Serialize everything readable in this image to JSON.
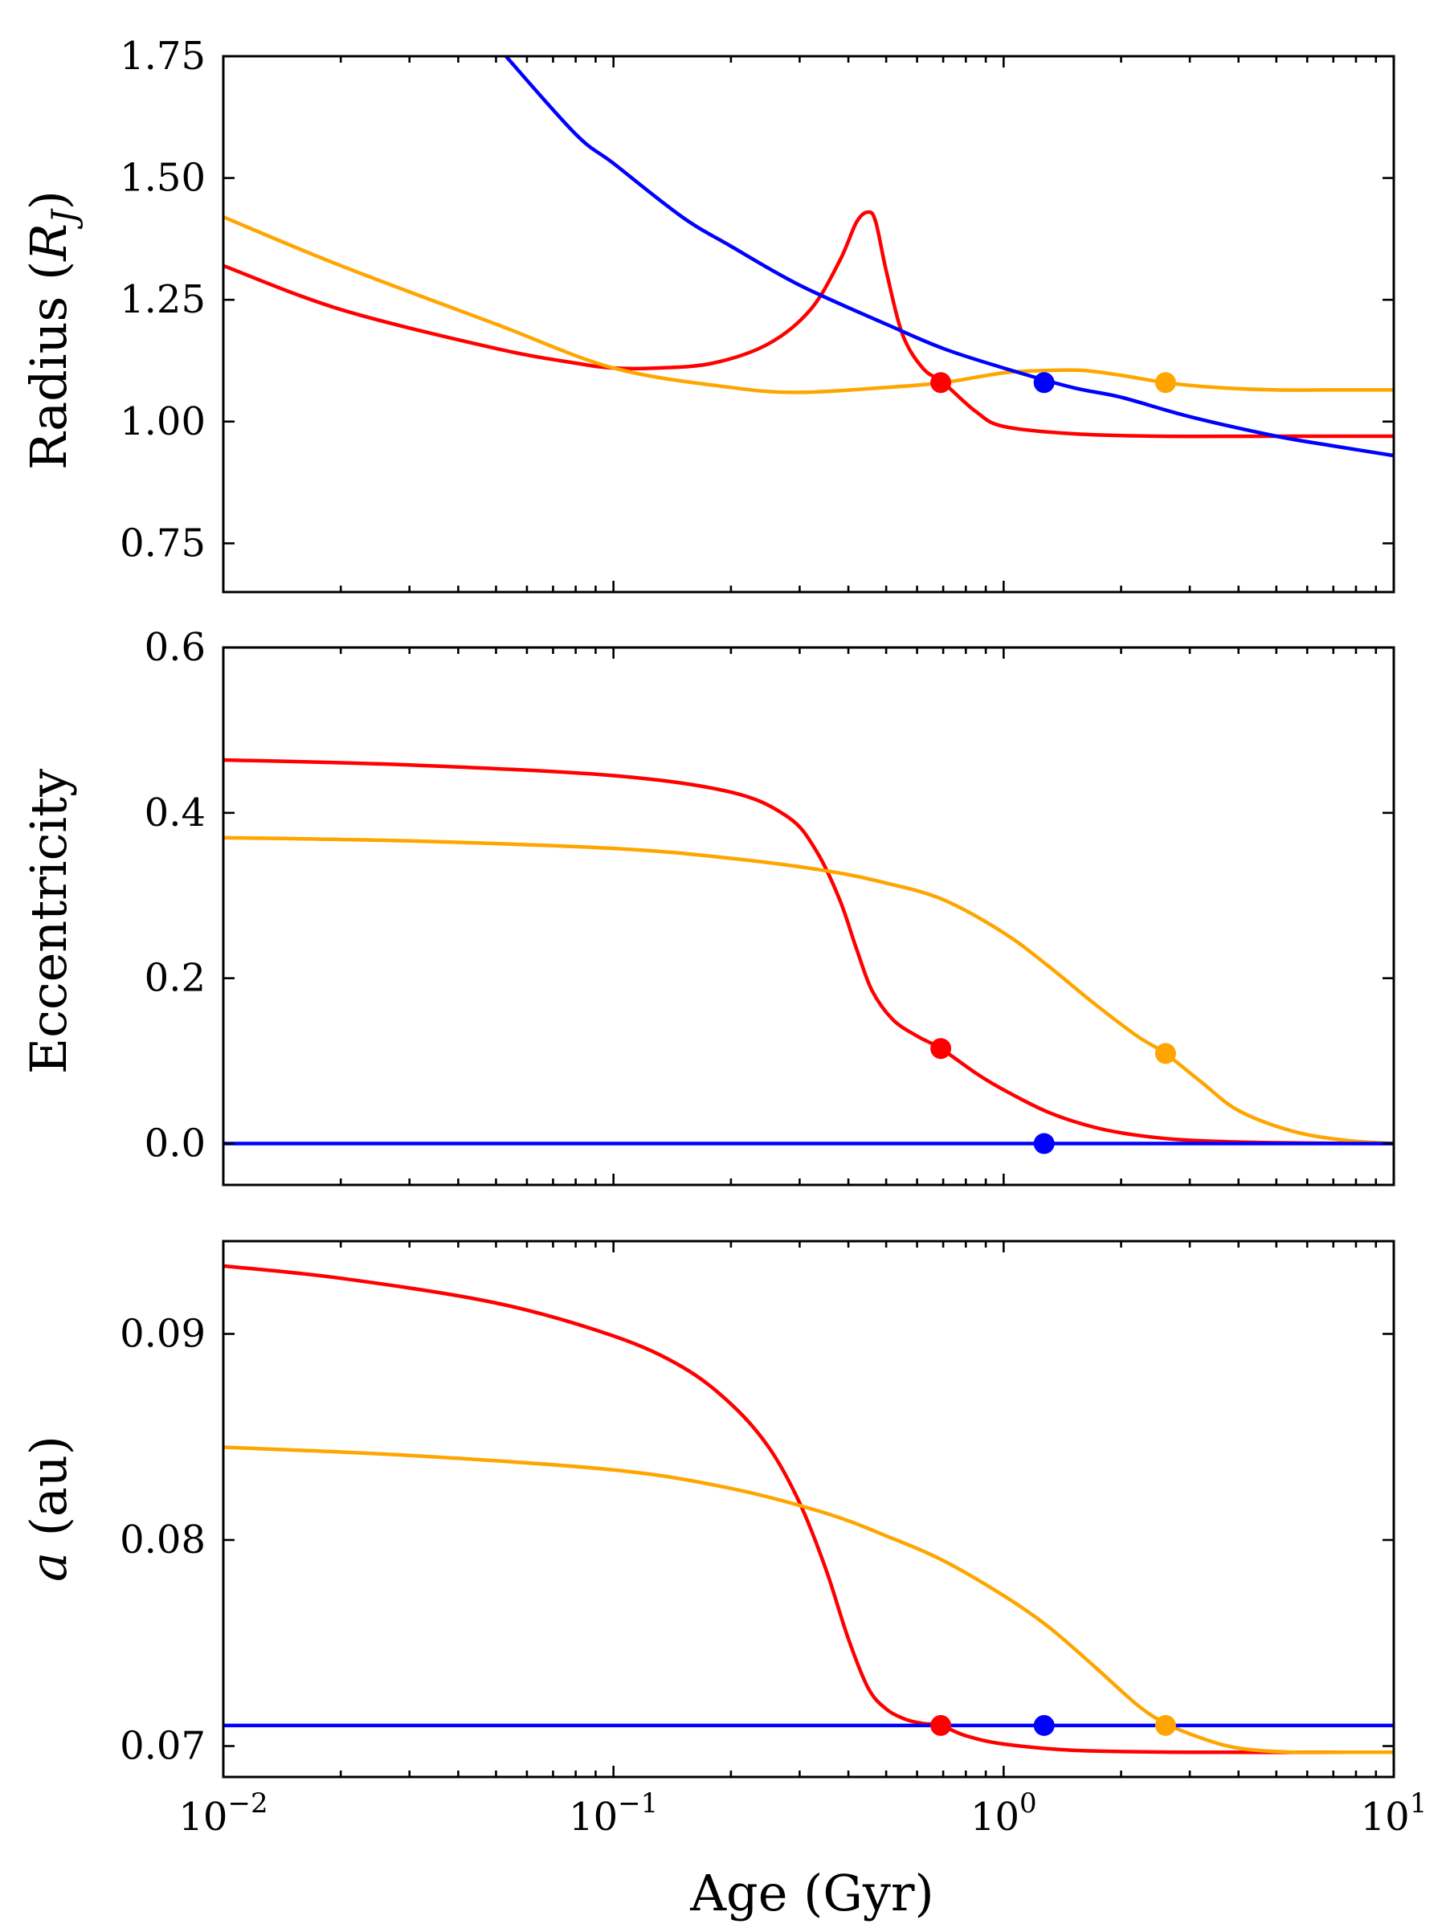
{
  "chart_data": [
    {
      "type": "line",
      "panel": "radius",
      "ylabel_text": "Radius (",
      "ylabel_symbol": "R",
      "ylabel_sub": "J",
      "ylabel_close": ")",
      "xscale": "log",
      "xlim": [
        0.01,
        10
      ],
      "ylim": [
        0.65,
        1.75
      ],
      "yticks": [
        0.75,
        1.0,
        1.25,
        1.5,
        1.75
      ],
      "ytick_labels": [
        "0.75",
        "1.00",
        "1.25",
        "1.50",
        "1.75"
      ],
      "series": [
        {
          "name": "red",
          "color": "#ff0000",
          "x": [
            0.01,
            0.02,
            0.05,
            0.08,
            0.1,
            0.13,
            0.18,
            0.25,
            0.32,
            0.38,
            0.42,
            0.45,
            0.47,
            0.5,
            0.55,
            0.62,
            0.7,
            0.85,
            1.0,
            1.5,
            2.5,
            5,
            10
          ],
          "y": [
            1.32,
            1.23,
            1.15,
            1.12,
            1.11,
            1.11,
            1.12,
            1.16,
            1.23,
            1.33,
            1.41,
            1.43,
            1.41,
            1.31,
            1.18,
            1.11,
            1.08,
            1.02,
            0.99,
            0.975,
            0.97,
            0.97,
            0.97
          ]
        },
        {
          "name": "orange",
          "color": "#ffa500",
          "x": [
            0.01,
            0.02,
            0.05,
            0.1,
            0.2,
            0.3,
            0.5,
            0.7,
            1.0,
            1.3,
            1.6,
            2.0,
            2.6,
            3.5,
            5,
            7,
            10
          ],
          "y": [
            1.42,
            1.32,
            1.2,
            1.11,
            1.07,
            1.06,
            1.07,
            1.08,
            1.1,
            1.105,
            1.105,
            1.095,
            1.08,
            1.07,
            1.065,
            1.065,
            1.065
          ]
        },
        {
          "name": "blue",
          "color": "#0000ff",
          "x": [
            0.053,
            0.08,
            0.1,
            0.15,
            0.2,
            0.3,
            0.5,
            0.7,
            1.0,
            1.5,
            2.0,
            3.0,
            5.0,
            7.0,
            10.0
          ],
          "y": [
            1.75,
            1.59,
            1.53,
            1.42,
            1.36,
            1.28,
            1.2,
            1.15,
            1.11,
            1.07,
            1.05,
            1.01,
            0.97,
            0.95,
            0.93
          ]
        }
      ],
      "markers": [
        {
          "series": "red",
          "color": "#ff0000",
          "x": 0.69,
          "y": 1.08
        },
        {
          "series": "blue",
          "color": "#0000ff",
          "x": 1.27,
          "y": 1.08
        },
        {
          "series": "orange",
          "color": "#ffa500",
          "x": 2.6,
          "y": 1.08
        }
      ]
    },
    {
      "type": "line",
      "panel": "eccentricity",
      "ylabel_text": "Eccentricity",
      "xscale": "log",
      "xlim": [
        0.01,
        10
      ],
      "ylim": [
        -0.05,
        0.6
      ],
      "yticks": [
        0.0,
        0.2,
        0.4,
        0.6
      ],
      "ytick_labels": [
        "0.0",
        "0.2",
        "0.4",
        "0.6"
      ],
      "series": [
        {
          "name": "red",
          "color": "#ff0000",
          "x": [
            0.01,
            0.03,
            0.1,
            0.2,
            0.28,
            0.33,
            0.38,
            0.42,
            0.46,
            0.52,
            0.6,
            0.69,
            0.85,
            1.0,
            1.3,
            1.7,
            2.2,
            3.0,
            5.0,
            10.0
          ],
          "y": [
            0.464,
            0.458,
            0.445,
            0.425,
            0.395,
            0.355,
            0.295,
            0.235,
            0.185,
            0.15,
            0.13,
            0.115,
            0.085,
            0.065,
            0.038,
            0.02,
            0.01,
            0.004,
            0.001,
            0.0
          ]
        },
        {
          "name": "orange",
          "color": "#ffa500",
          "x": [
            0.01,
            0.03,
            0.1,
            0.2,
            0.35,
            0.5,
            0.7,
            1.0,
            1.3,
            1.7,
            2.2,
            2.6,
            3.2,
            4.0,
            5.5,
            7.5,
            10.0
          ],
          "y": [
            0.37,
            0.366,
            0.357,
            0.345,
            0.33,
            0.315,
            0.295,
            0.255,
            0.215,
            0.17,
            0.13,
            0.109,
            0.075,
            0.04,
            0.015,
            0.004,
            0.0
          ]
        },
        {
          "name": "blue",
          "color": "#0000ff",
          "x": [
            0.01,
            10.0
          ],
          "y": [
            0.0,
            0.0
          ]
        }
      ],
      "markers": [
        {
          "series": "red",
          "color": "#ff0000",
          "x": 0.69,
          "y": 0.115
        },
        {
          "series": "blue",
          "color": "#0000ff",
          "x": 1.27,
          "y": 0.0
        },
        {
          "series": "orange",
          "color": "#ffa500",
          "x": 2.6,
          "y": 0.109
        }
      ]
    },
    {
      "type": "line",
      "panel": "semi-major-axis",
      "ylabel_symbol": "a",
      "ylabel_text": " (au)",
      "xlabel": "Age (Gyr)",
      "xscale": "log",
      "xlim": [
        0.01,
        10
      ],
      "ylim": [
        0.0685,
        0.0945
      ],
      "yticks": [
        0.07,
        0.08,
        0.09
      ],
      "ytick_labels": [
        "0.07",
        "0.08",
        "0.09"
      ],
      "series": [
        {
          "name": "red",
          "color": "#ff0000",
          "x": [
            0.01,
            0.02,
            0.05,
            0.1,
            0.15,
            0.2,
            0.25,
            0.3,
            0.35,
            0.4,
            0.45,
            0.5,
            0.56,
            0.62,
            0.69,
            0.8,
            1.0,
            1.5,
            3.0,
            10.0
          ],
          "y": [
            0.0933,
            0.0927,
            0.0915,
            0.0899,
            0.0884,
            0.0866,
            0.0845,
            0.0818,
            0.0786,
            0.0752,
            0.0728,
            0.0718,
            0.0713,
            0.0711,
            0.071,
            0.0705,
            0.0701,
            0.0698,
            0.0697,
            0.0697
          ]
        },
        {
          "name": "orange",
          "color": "#ffa500",
          "x": [
            0.01,
            0.03,
            0.1,
            0.2,
            0.35,
            0.5,
            0.7,
            1.0,
            1.3,
            1.7,
            2.2,
            2.6,
            3.2,
            4.0,
            5.5,
            7.5,
            10.0
          ],
          "y": [
            0.0845,
            0.0841,
            0.0834,
            0.0825,
            0.0813,
            0.0802,
            0.079,
            0.0773,
            0.0758,
            0.0739,
            0.072,
            0.0711,
            0.0704,
            0.0699,
            0.0697,
            0.0697,
            0.0697
          ]
        },
        {
          "name": "blue",
          "color": "#0000ff",
          "x": [
            0.01,
            10.0
          ],
          "y": [
            0.071,
            0.071
          ]
        }
      ],
      "markers": [
        {
          "series": "red",
          "color": "#ff0000",
          "x": 0.69,
          "y": 0.071
        },
        {
          "series": "blue",
          "color": "#0000ff",
          "x": 1.27,
          "y": 0.071
        },
        {
          "series": "orange",
          "color": "#ffa500",
          "x": 2.6,
          "y": 0.071
        }
      ]
    }
  ],
  "x_axis": {
    "label": "Age (Gyr)",
    "ticks": [
      {
        "value": 0.01,
        "base": "10",
        "exp": "−2"
      },
      {
        "value": 0.1,
        "base": "10",
        "exp": "−1"
      },
      {
        "value": 1,
        "base": "10",
        "exp": "0"
      },
      {
        "value": 10,
        "base": "10",
        "exp": "1"
      }
    ]
  }
}
